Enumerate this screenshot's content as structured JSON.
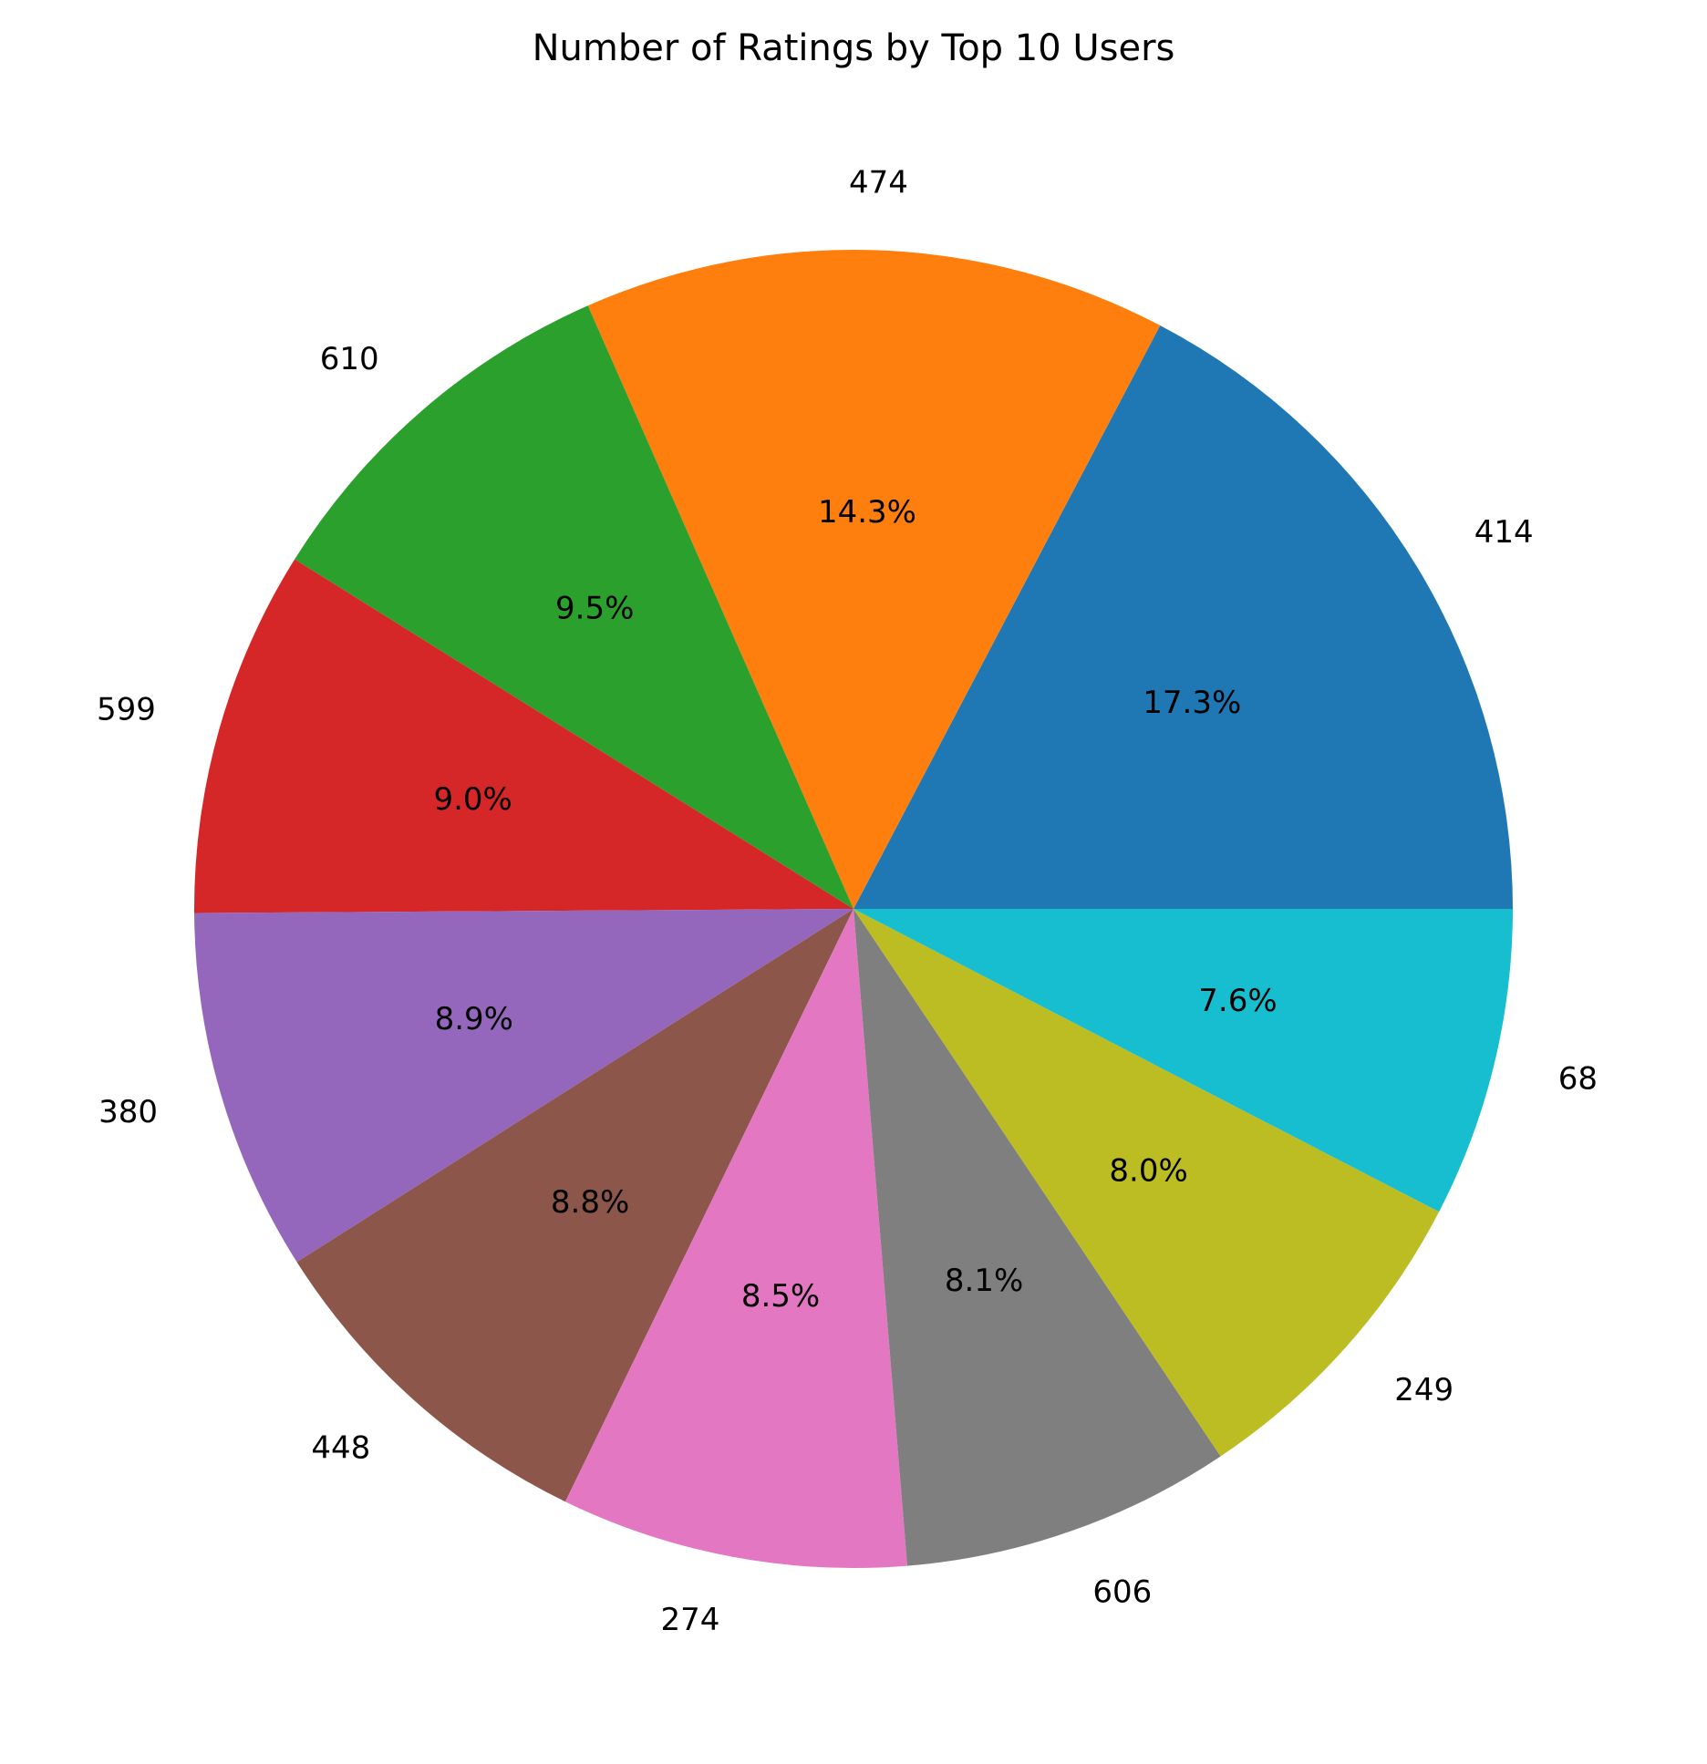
{
  "chart_data": {
    "type": "pie",
    "title": "Number of Ratings by Top 10 Users",
    "start_angle_deg": 0,
    "direction": "counterclockwise",
    "slices": [
      {
        "label": "414",
        "value": 17.3,
        "pct_label": "17.3%",
        "color": "#1f77b4"
      },
      {
        "label": "474",
        "value": 14.3,
        "pct_label": "14.3%",
        "color": "#ff7f0e"
      },
      {
        "label": "610",
        "value": 9.5,
        "pct_label": "9.5%",
        "color": "#2ca02c"
      },
      {
        "label": "599",
        "value": 9.0,
        "pct_label": "9.0%",
        "color": "#d62728"
      },
      {
        "label": "380",
        "value": 8.9,
        "pct_label": "8.9%",
        "color": "#9467bd"
      },
      {
        "label": "448",
        "value": 8.8,
        "pct_label": "8.8%",
        "color": "#8c564b"
      },
      {
        "label": "274",
        "value": 8.5,
        "pct_label": "8.5%",
        "color": "#e377c2"
      },
      {
        "label": "606",
        "value": 8.1,
        "pct_label": "8.1%",
        "color": "#7f7f7f"
      },
      {
        "label": "249",
        "value": 8.0,
        "pct_label": "8.0%",
        "color": "#bcbd22"
      },
      {
        "label": "68",
        "value": 7.6,
        "pct_label": "7.6%",
        "color": "#17becf"
      }
    ]
  }
}
